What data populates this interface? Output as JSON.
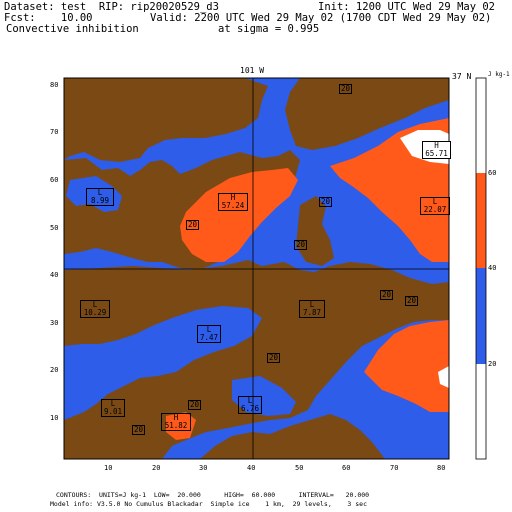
{
  "header": {
    "dataset": "Dataset: test  RIP: rip20020529_d3",
    "init": "Init: 1200 UTC Wed 29 May 02",
    "fcst": "Fcst:    10.00",
    "valid": "Valid: 2200 UTC Wed 29 May 02 (1700 CDT Wed 29 May 02)",
    "field": "Convective inhibition",
    "level": "at sigma = 0.995"
  },
  "map": {
    "lon_label_top": "101 W",
    "lat_label_right": "37 N",
    "y_ticks": [
      "10",
      "20",
      "30",
      "40",
      "50",
      "60",
      "70",
      "80"
    ],
    "x_ticks": [
      "10",
      "20",
      "30",
      "40",
      "50",
      "60",
      "70",
      "80"
    ],
    "colors": {
      "brown": "#7b4a14",
      "blue": "#2d5de9",
      "orange": "#ff5a1a",
      "white": "#ffffff"
    }
  },
  "labels": [
    {
      "kind": "L",
      "value": "8.99"
    },
    {
      "kind": "H",
      "value": "57.24"
    },
    {
      "kind": "L",
      "value": "22.07"
    },
    {
      "kind": "H",
      "value": "65.71"
    },
    {
      "kind": "L",
      "value": "10.29"
    },
    {
      "kind": "L",
      "value": "7.47"
    },
    {
      "kind": "L",
      "value": "7.87"
    },
    {
      "kind": "L",
      "value": "9.01"
    },
    {
      "kind": "H",
      "value": "51.82"
    },
    {
      "kind": "L",
      "value": "6.76"
    }
  ],
  "contour_labels": [
    "20",
    "20",
    "20",
    "20",
    "20",
    "20",
    "20",
    "20",
    "20"
  ],
  "colorbar": {
    "units": "J kg-1",
    "ticks": [
      "60",
      "40",
      "20"
    ],
    "colors_top_to_bottom": [
      "#ffffff",
      "#ff5a1a",
      "#2d5de9",
      "#ffffff"
    ]
  },
  "footer": {
    "contours": "CONTOURS:  UNITS=J kg-1  LOW=  20.000      HIGH=  60.000      INTERVAL=   20.000",
    "model": "Model info: V3.5.0 No Cumulus Blackadar  Simple ice    1 km,  29 levels,    3 sec"
  }
}
